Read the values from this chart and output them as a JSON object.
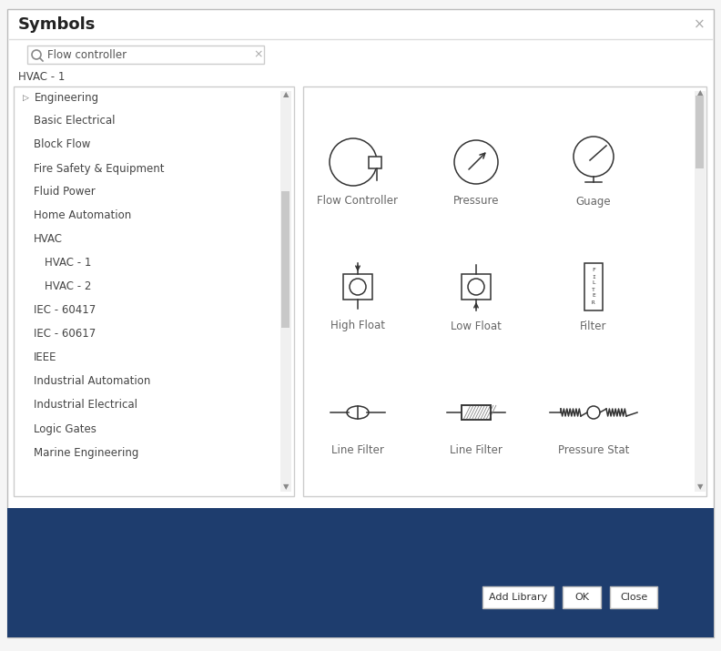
{
  "title": "Symbols",
  "close_x": "×",
  "search_text": "Flow controller",
  "hvac_label": "HVAC - 1",
  "bg_color": "#f5f5f5",
  "dialog_bg": "#ffffff",
  "dialog_border": "#cccccc",
  "bottom_bar_color": "#1e3d6e",
  "tree_items": [
    {
      "text": "Engineering",
      "indent": 0,
      "folder": true
    },
    {
      "text": "Basic Electrical",
      "indent": 1,
      "folder": false
    },
    {
      "text": "Block Flow",
      "indent": 1,
      "folder": false
    },
    {
      "text": "Fire Safety & Equipment",
      "indent": 1,
      "folder": false
    },
    {
      "text": "Fluid Power",
      "indent": 1,
      "folder": false
    },
    {
      "text": "Home Automation",
      "indent": 1,
      "folder": false
    },
    {
      "text": "HVAC",
      "indent": 1,
      "folder": false
    },
    {
      "text": "HVAC - 1",
      "indent": 2,
      "folder": false
    },
    {
      "text": "HVAC - 2",
      "indent": 2,
      "folder": false
    },
    {
      "text": "IEC - 60417",
      "indent": 1,
      "folder": false
    },
    {
      "text": "IEC - 60617",
      "indent": 1,
      "folder": false
    },
    {
      "text": "IEEE",
      "indent": 1,
      "folder": false
    },
    {
      "text": "Industrial Automation",
      "indent": 1,
      "folder": false
    },
    {
      "text": "Industrial Electrical",
      "indent": 1,
      "folder": false
    },
    {
      "text": "Logic Gates",
      "indent": 1,
      "folder": false
    },
    {
      "text": "Marine Engineering",
      "indent": 1,
      "folder": false
    }
  ],
  "symbols": [
    {
      "name": "Flow Controller",
      "row": 0,
      "col": 0
    },
    {
      "name": "Pressure",
      "row": 0,
      "col": 1
    },
    {
      "name": "Guage",
      "row": 0,
      "col": 2
    },
    {
      "name": "High Float",
      "row": 1,
      "col": 0
    },
    {
      "name": "Low Float",
      "row": 1,
      "col": 1
    },
    {
      "name": "Filter",
      "row": 1,
      "col": 2
    },
    {
      "name": "Line Filter",
      "row": 2,
      "col": 0
    },
    {
      "name": "Line Filter",
      "row": 2,
      "col": 1
    },
    {
      "name": "Pressure Stat",
      "row": 2,
      "col": 2
    }
  ],
  "buttons": [
    "Add Library",
    "OK",
    "Close"
  ],
  "text_color": "#444444",
  "light_text": "#aaaaaa",
  "button_border": "#cccccc",
  "search_border": "#cccccc",
  "panel_border": "#dddddd",
  "sym_label_color": "#666666"
}
